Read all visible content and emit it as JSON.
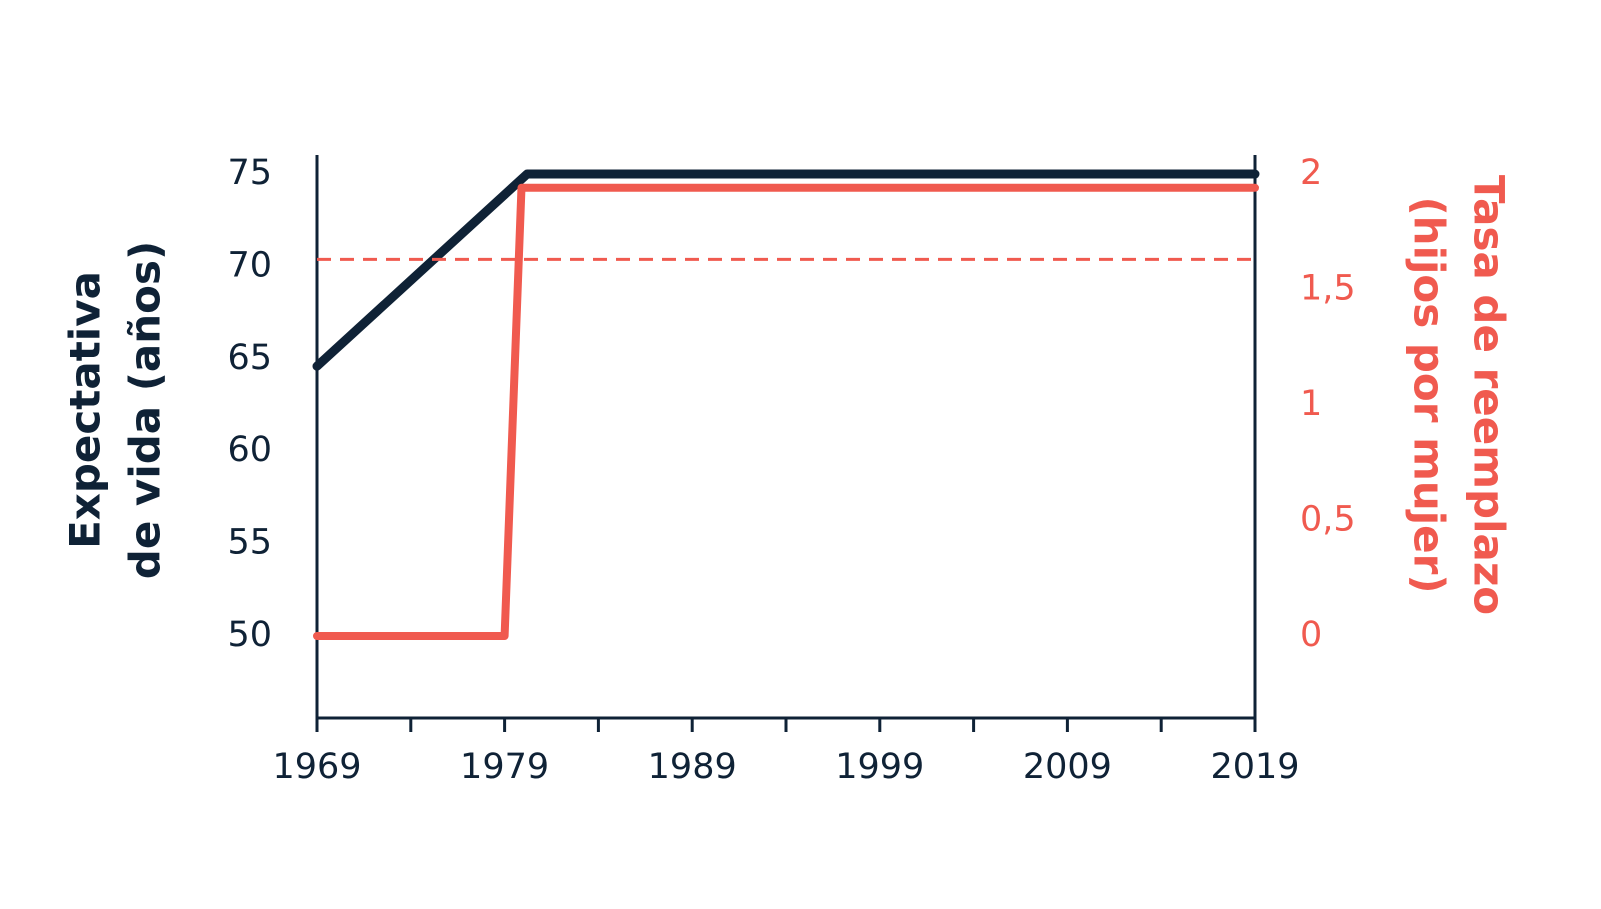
{
  "chart_data": {
    "type": "line",
    "ylabel": [
      "Expectativa",
      "de vida (años)"
    ],
    "y2label": [
      "Tasa de reemplazo",
      "(hijos por mujer)"
    ],
    "xlim": [
      1969,
      2019
    ],
    "xticks": [
      1969,
      1979,
      1989,
      1999,
      2009,
      2019
    ],
    "xminorticks": [
      1974,
      1984,
      1994,
      2004,
      2014
    ],
    "ylim": [
      45.56,
      76.03
    ],
    "yticks": [
      50,
      55,
      60,
      65,
      70,
      75
    ],
    "y2lim": [
      -0.355,
      2.082
    ],
    "y2ticks": [
      0,
      {
        "value": 0.5,
        "label": "0,5"
      },
      1,
      {
        "value": 1.5,
        "label": "1,5"
      },
      2
    ],
    "axis_color": "#0f2236",
    "y2_color": "#f05a4f",
    "series": [
      {
        "x": [
          1969,
          1980.2,
          2019
        ],
        "values": [
          64.6,
          75,
          75
        ],
        "color": "#0f2236",
        "axis": "y",
        "width": 9
      },
      {
        "x": [
          1969,
          1979,
          1979.9,
          2019
        ],
        "values": [
          0,
          0,
          1.94,
          1.94
        ],
        "color": "#f05a4f",
        "axis": "y2",
        "width": 8
      },
      {
        "x": [
          1969,
          2019
        ],
        "values": [
          1.63,
          1.63
        ],
        "color": "#f05a4f",
        "axis": "y2",
        "width": 3,
        "dashed": true
      }
    ]
  }
}
